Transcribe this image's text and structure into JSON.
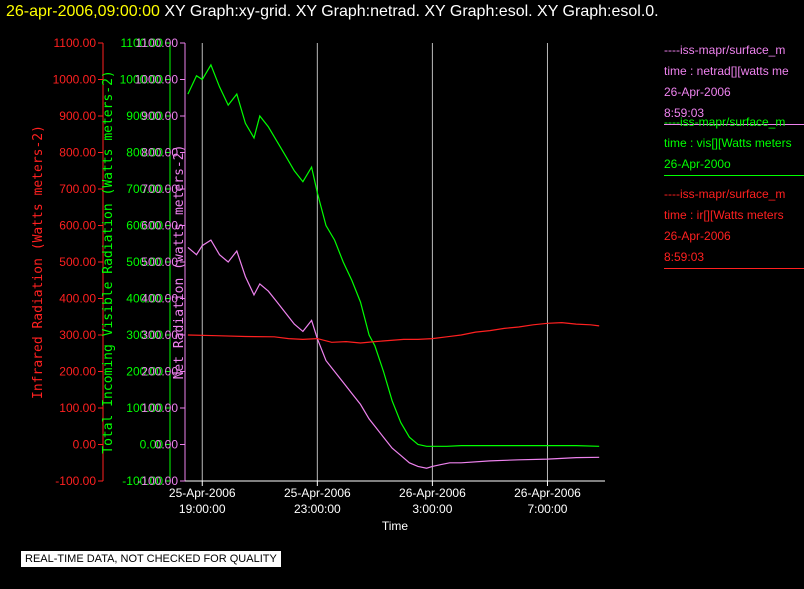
{
  "header": {
    "timestamp": "26-apr-2006,09:00:00",
    "graphs": [
      "XY Graph:xy-grid.",
      "XY Graph:netrad.",
      "XY Graph:esol.",
      "XY Graph:esol.0."
    ]
  },
  "legend": [
    {
      "line1": "----iss-mapr/surface_m",
      "line2": "time : netrad[][watts me",
      "line3": "26-Apr-2006",
      "line4": "8:59:03",
      "color": "#ee82ee"
    },
    {
      "line1": "----iss-mapr/surface_m",
      "line2": "time : vis[][Watts meters",
      "line3": "26-Apr-200o",
      "line4": "",
      "color": "#00ff00"
    },
    {
      "line1": "----iss-mapr/surface_m",
      "line2": "time : ir[][Watts meters",
      "line3": "26-Apr-2006",
      "line4": "8:59:03",
      "color": "#ff2020"
    }
  ],
  "disclaimer": "REAL-TIME DATA, NOT CHECKED FOR QUALITY",
  "chart_data": {
    "type": "line",
    "xlabel": "Time",
    "x_ticks": [
      {
        "date": "25-Apr-2006",
        "time": "19:00:00"
      },
      {
        "date": "25-Apr-2006",
        "time": "23:00:00"
      },
      {
        "date": "26-Apr-2006",
        "time": "3:00:00"
      },
      {
        "date": "26-Apr-2006",
        "time": "7:00:00"
      }
    ],
    "x_tick_hours": [
      19,
      23,
      27,
      31
    ],
    "xlim_hours": [
      18.4,
      33.0
    ],
    "gridlines": "vertical at x ticks",
    "axes": [
      {
        "label": "Infrared Radiation (Watts meters-2)",
        "color": "#ff2020",
        "ylim": [
          -100,
          1100
        ],
        "ticks": [
          "-100.00",
          "0.00",
          "100.00",
          "200.00",
          "300.00",
          "400.00",
          "500.00",
          "600.00",
          "700.00",
          "800.00",
          "900.00",
          "1000.00",
          "1100.00"
        ]
      },
      {
        "label": "Total Incoming Visible Radiation (Watts meters-2)",
        "color": "#00ff00",
        "ylim": [
          -100,
          1100
        ],
        "ticks": [
          "-100.00",
          "0.00",
          "100.00",
          "200.00",
          "300.00",
          "400.00",
          "500.00",
          "600.00",
          "700.00",
          "800.00",
          "900.00",
          "1000.00",
          "1100.00"
        ]
      },
      {
        "label": "Net Radiation (watts meters-2)",
        "color": "#ee82ee",
        "ylim": [
          -100,
          1100
        ],
        "ticks": [
          "-100.00",
          "0.00",
          "100.00",
          "200.00",
          "300.00",
          "400.00",
          "500.00",
          "600.00",
          "700.00",
          "800.00",
          "900.00",
          "1000.00",
          "1100.00"
        ]
      }
    ],
    "series": [
      {
        "name": "time : vis[][Watts meters",
        "color": "#00ff00",
        "x": [
          18.5,
          18.8,
          19.0,
          19.3,
          19.6,
          19.9,
          20.2,
          20.5,
          20.8,
          21.0,
          21.3,
          21.6,
          21.9,
          22.2,
          22.5,
          22.8,
          23.0,
          23.3,
          23.6,
          23.9,
          24.2,
          24.5,
          24.8,
          25.0,
          25.3,
          25.6,
          25.9,
          26.2,
          26.5,
          26.8,
          27.0,
          27.5,
          28.0,
          29.0,
          30.0,
          31.0,
          32.0,
          32.8
        ],
        "y": [
          960,
          1010,
          1000,
          1040,
          980,
          930,
          960,
          880,
          840,
          900,
          870,
          830,
          790,
          750,
          720,
          760,
          690,
          600,
          560,
          500,
          450,
          390,
          300,
          270,
          200,
          120,
          60,
          20,
          0,
          -5,
          -5,
          -5,
          -3,
          -3,
          -3,
          -3,
          -3,
          -5
        ]
      },
      {
        "name": "time : netrad[][watts me",
        "color": "#ee82ee",
        "x": [
          18.5,
          18.8,
          19.0,
          19.3,
          19.6,
          19.9,
          20.2,
          20.5,
          20.8,
          21.0,
          21.3,
          21.6,
          21.9,
          22.2,
          22.5,
          22.8,
          23.0,
          23.3,
          23.6,
          23.9,
          24.2,
          24.5,
          24.8,
          25.0,
          25.3,
          25.6,
          25.9,
          26.2,
          26.5,
          26.8,
          27.0,
          27.3,
          27.6,
          28.0,
          29.0,
          30.0,
          31.0,
          32.0,
          32.8
        ],
        "y": [
          540,
          520,
          545,
          560,
          520,
          500,
          530,
          460,
          410,
          440,
          420,
          390,
          360,
          330,
          310,
          340,
          290,
          230,
          200,
          170,
          140,
          110,
          70,
          50,
          20,
          -10,
          -30,
          -50,
          -60,
          -65,
          -60,
          -55,
          -50,
          -50,
          -45,
          -42,
          -40,
          -36,
          -35
        ]
      },
      {
        "name": "time : ir[][Watts meters",
        "color": "#ff2020",
        "x": [
          18.5,
          19.5,
          20.5,
          21.5,
          22.0,
          22.5,
          23.0,
          23.5,
          24.0,
          24.5,
          25.0,
          25.5,
          26.0,
          26.5,
          27.0,
          27.5,
          28.0,
          28.5,
          29.0,
          29.5,
          30.0,
          30.5,
          31.0,
          31.5,
          32.0,
          32.5,
          32.8
        ],
        "y": [
          300,
          298,
          296,
          295,
          290,
          288,
          290,
          280,
          282,
          278,
          282,
          285,
          288,
          288,
          290,
          295,
          300,
          308,
          312,
          318,
          322,
          328,
          332,
          334,
          330,
          328,
          325
        ]
      }
    ]
  }
}
